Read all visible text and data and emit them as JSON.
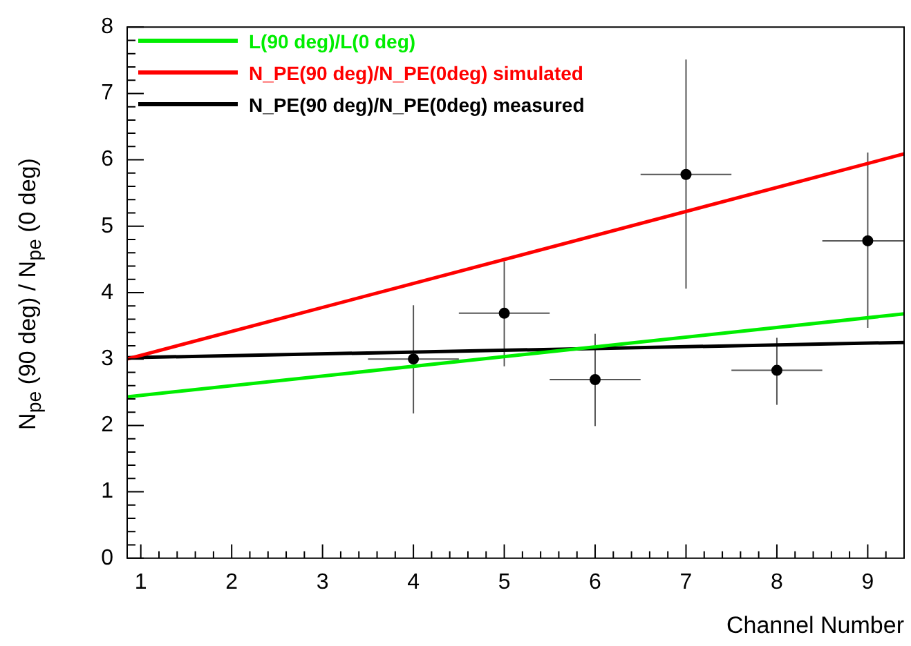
{
  "chart_data": {
    "type": "line",
    "xlabel": "Channel Number",
    "ylabel": "N$_{pe}$ (90 deg)  /  N$_{pe}$ (0 deg)",
    "xlim": [
      0.85,
      9.4
    ],
    "xticks": [
      1,
      2,
      3,
      4,
      5,
      6,
      7,
      8,
      9
    ],
    "ylim": [
      0,
      8
    ],
    "yticks": [
      0,
      1,
      2,
      3,
      4,
      5,
      6,
      7,
      8
    ],
    "grid": false,
    "legend": "top left",
    "marker": "none",
    "line_style": "solid",
    "series": [
      {
        "name": "L(90 deg)/L(0 deg)",
        "color": "#00ee00",
        "x": [
          0.85,
          9.4
        ],
        "values": [
          2.43,
          3.68
        ]
      },
      {
        "name": "N_PE(90 deg)/N_PE(0deg) simulated",
        "color": "#ff0000",
        "x": [
          0.85,
          9.4
        ],
        "values": [
          3.0,
          6.09
        ]
      },
      {
        "name": "N_PE(90 deg)/N_PE(0deg) measured",
        "color": "#000000",
        "x": [
          0.85,
          9.4
        ],
        "values": [
          3.02,
          3.25
        ]
      },
      {
        "type": "scatter",
        "marker": "circle",
        "color": "#000000",
        "x": [
          4,
          5,
          6,
          7,
          8,
          9
        ],
        "values": [
          3.0,
          3.69,
          2.69,
          5.78,
          2.83,
          4.78
        ],
        "errors": [
          [
            2.18,
            3.81
          ],
          [
            2.89,
            4.47
          ],
          [
            1.99,
            3.38
          ],
          [
            4.06,
            7.51
          ],
          [
            2.31,
            3.32
          ],
          [
            3.47,
            6.11
          ]
        ],
        "xerrors": [
          [
            3.5,
            4.5
          ],
          [
            4.5,
            5.5
          ],
          [
            5.5,
            6.5
          ],
          [
            6.5,
            7.5
          ],
          [
            7.5,
            8.5
          ],
          [
            8.5,
            9.4
          ]
        ]
      }
    ]
  }
}
